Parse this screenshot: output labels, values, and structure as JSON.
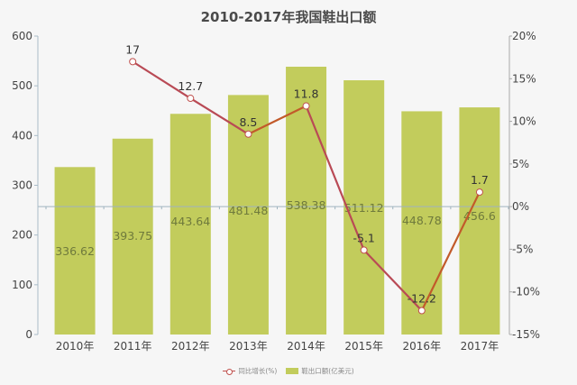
{
  "title": "2010-2017年我国鞋出口额",
  "chart_data": {
    "type": "bar+line",
    "title": "2010-2017年我国鞋出口额",
    "categories": [
      "2010年",
      "2011年",
      "2012年",
      "2013年",
      "2014年",
      "2015年",
      "2016年",
      "2017年"
    ],
    "series": [
      {
        "name": "鞋出口额(亿美元)",
        "type": "bar",
        "axis": "left",
        "color": "#c2cc5c",
        "values": [
          336.62,
          393.75,
          443.64,
          481.48,
          538.38,
          511.12,
          448.78,
          456.6
        ],
        "labels": [
          "336.62",
          "393.75",
          "443.64",
          "481.48",
          "538.38",
          "511.12",
          "448.78",
          "456.6"
        ]
      },
      {
        "name": "同比增长(%)",
        "type": "line",
        "axis": "right",
        "color": "#c0504d",
        "values": [
          null,
          17,
          12.7,
          8.5,
          11.8,
          -5.1,
          -12.2,
          1.7
        ],
        "labels": [
          "",
          "17",
          "12.7",
          "8.5",
          "11.8",
          "-5.1",
          "-12.2",
          "1.7"
        ]
      }
    ],
    "left_axis": {
      "min": 0,
      "max": 600,
      "ticks": [
        "0",
        "100",
        "200",
        "300",
        "400",
        "500",
        "600"
      ]
    },
    "right_axis": {
      "min": -15,
      "max": 20,
      "ticks": [
        "-15%",
        "-10%",
        "-5%",
        "0%",
        "5%",
        "10%",
        "15%",
        "20%"
      ]
    },
    "grid": false,
    "legend_position": "bottom"
  },
  "legend": {
    "line_label": "同比增长(%)",
    "bar_label": "鞋出口额(亿美元)"
  }
}
